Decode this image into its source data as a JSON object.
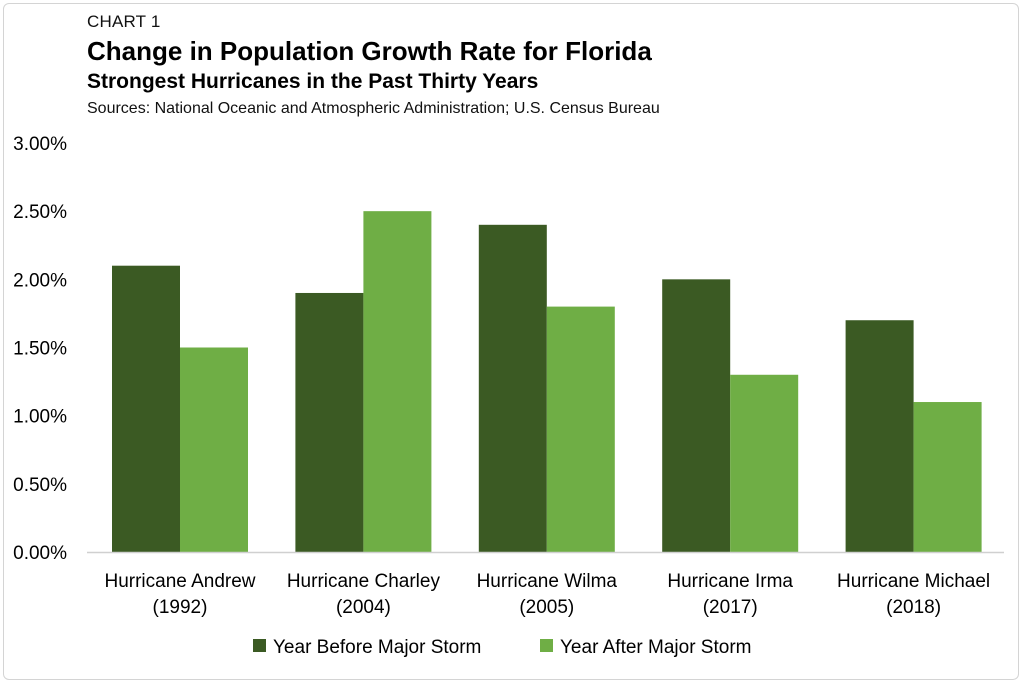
{
  "header": {
    "label": "CHART 1",
    "title": "Change in Population Growth Rate for Florida",
    "subtitle": "Strongest Hurricanes in the Past Thirty Years",
    "sources": "Sources: National Oceanic and Atmospheric Administration; U.S. Census Bureau"
  },
  "colors": {
    "before": "#3b5a23",
    "after": "#6fae45",
    "axis": "#d0d0d0"
  },
  "chart_data": {
    "type": "bar",
    "title": "Change in Population Growth Rate for Florida",
    "subtitle": "Strongest Hurricanes in the Past Thirty Years",
    "xlabel": "",
    "ylabel": "",
    "ylim": [
      0,
      3.0
    ],
    "yticks": [
      0,
      0.5,
      1.0,
      1.5,
      2.0,
      2.5,
      3.0
    ],
    "ytick_labels": [
      "0.00%",
      "0.50%",
      "1.00%",
      "1.50%",
      "2.00%",
      "2.50%",
      "3.00%"
    ],
    "grid": false,
    "legend_position": "bottom-center",
    "categories": [
      [
        "Hurricane Andrew",
        "(1992)"
      ],
      [
        "Hurricane Charley",
        "(2004)"
      ],
      [
        "Hurricane Wilma",
        "(2005)"
      ],
      [
        "Hurricane Irma",
        "(2017)"
      ],
      [
        "Hurricane Michael",
        "(2018)"
      ]
    ],
    "series": [
      {
        "name": "Year Before Major Storm",
        "values": [
          2.1,
          1.9,
          2.4,
          2.0,
          1.7
        ]
      },
      {
        "name": "Year After Major Storm",
        "values": [
          1.5,
          2.5,
          1.8,
          1.3,
          1.1
        ]
      }
    ]
  }
}
